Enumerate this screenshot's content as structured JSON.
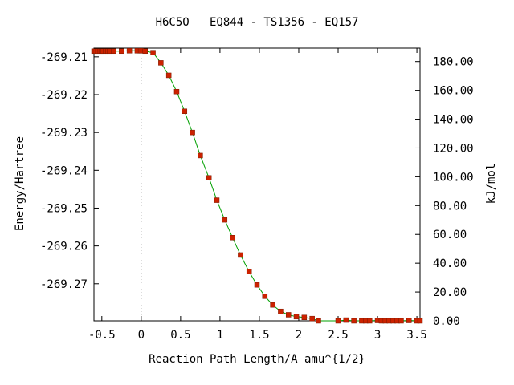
{
  "chart_data": {
    "type": "line",
    "title": "H6C5O   EQ844 - TS1356 - EQ157",
    "xlabel": "Reaction Path Length/A amu^{1/2}",
    "ylabel": "Energy/Hartree",
    "y2label": "kJ/mol",
    "xlim": [
      -0.6,
      3.54
    ],
    "ylim": [
      -269.2798,
      -269.2077
    ],
    "y2lim": [
      0,
      189.3
    ],
    "x_ticks": [
      -0.5,
      0,
      0.5,
      1,
      1.5,
      2,
      2.5,
      3,
      3.5
    ],
    "x_tick_labels": [
      "-0.5",
      "0",
      "0.5",
      "1",
      "1.5",
      "2",
      "2.5",
      "3",
      "3.5"
    ],
    "y_ticks": [
      -269.21,
      -269.22,
      -269.23,
      -269.24,
      -269.25,
      -269.26,
      -269.27
    ],
    "y_tick_labels": [
      "-269.21",
      "-269.22",
      "-269.23",
      "-269.24",
      "-269.25",
      "-269.26",
      "-269.27"
    ],
    "y2_ticks": [
      0,
      20,
      40,
      60,
      80,
      100,
      120,
      140,
      160,
      180
    ],
    "y2_tick_labels": [
      "0.00",
      "20.00",
      "40.00",
      "60.00",
      "80.00",
      "100.00",
      "120.00",
      "140.00",
      "160.00",
      "180.00"
    ],
    "ts_marker_x": 0,
    "grid": false,
    "line_color": "#00a000",
    "point_color": "#cc2200",
    "series": [
      {
        "x": [
          -0.6,
          -0.58,
          -0.55,
          -0.52,
          -0.5,
          -0.48,
          -0.45,
          -0.42,
          -0.4,
          -0.35,
          -0.25,
          -0.15,
          -0.05,
          -0.02,
          0.0,
          0.05,
          0.15,
          0.25,
          0.35,
          0.45,
          0.55,
          0.65,
          0.75,
          0.86,
          0.96,
          1.06,
          1.16,
          1.26,
          1.37,
          1.47,
          1.57,
          1.67,
          1.77,
          1.87,
          1.97,
          2.07,
          2.17,
          2.25,
          2.5,
          2.6,
          2.7,
          2.8,
          2.85,
          2.9,
          3.0,
          3.05,
          3.1,
          3.15,
          3.2,
          3.25,
          3.3,
          3.4,
          3.5,
          3.54
        ],
        "y": [
          -269.2085,
          -269.2085,
          -269.2085,
          -269.2085,
          -269.2085,
          -269.2085,
          -269.2085,
          -269.2085,
          -269.2085,
          -269.2085,
          -269.2085,
          -269.2084,
          -269.2084,
          -269.2084,
          -269.2084,
          -269.2085,
          -269.2089,
          -269.2116,
          -269.2149,
          -269.2192,
          -269.2244,
          -269.23,
          -269.2361,
          -269.242,
          -269.2479,
          -269.2531,
          -269.2578,
          -269.2624,
          -269.2668,
          -269.2703,
          -269.2733,
          -269.2756,
          -269.2773,
          -269.2782,
          -269.2787,
          -269.2789,
          -269.2792,
          -269.2798,
          -269.2798,
          -269.2796,
          -269.2798,
          -269.2798,
          -269.2798,
          -269.2798,
          -269.2797,
          -269.2798,
          -269.2798,
          -269.2798,
          -269.2798,
          -269.2798,
          -269.2798,
          -269.2797,
          -269.2798,
          -269.2798
        ]
      }
    ]
  }
}
